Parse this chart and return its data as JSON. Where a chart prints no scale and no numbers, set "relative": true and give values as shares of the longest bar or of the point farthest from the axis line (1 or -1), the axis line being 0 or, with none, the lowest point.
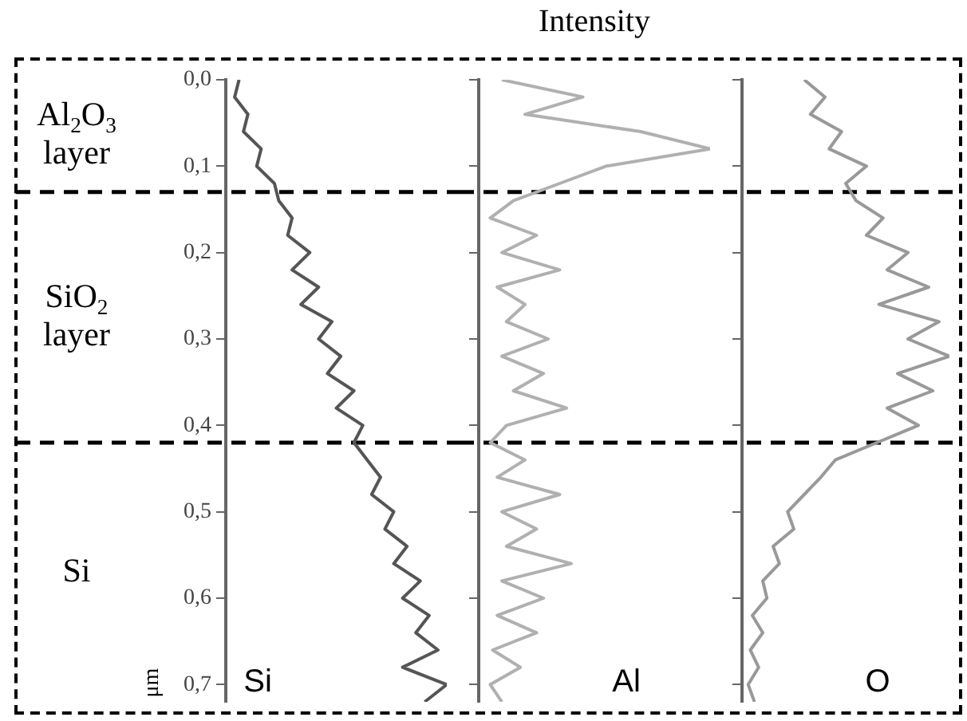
{
  "chart_data": [
    {
      "type": "line",
      "orientation": "horizontal",
      "relative": true,
      "ylabel": "μm",
      "ylim": [
        0.72,
        0
      ],
      "yticks": [
        {
          "value": 0,
          "label": "0,0"
        },
        {
          "value": 0.1,
          "label": "0,1"
        },
        {
          "value": 0.2,
          "label": "0,2"
        },
        {
          "value": 0.3,
          "label": "0,3"
        },
        {
          "value": 0.4,
          "label": "0,4"
        },
        {
          "value": 0.5,
          "label": "0,5"
        },
        {
          "value": 0.6,
          "label": "0,6"
        },
        {
          "value": 0.7,
          "label": "0,7"
        }
      ],
      "legend": false,
      "grid": false,
      "marker": "none",
      "ref_lines": [
        {
          "axis": "y",
          "value": 0.13,
          "line_style": "dashed",
          "color": "#000000"
        },
        {
          "axis": "y",
          "value": 0.42,
          "line_style": "dashed",
          "color": "#000000"
        }
      ],
      "annotations": [
        "Al$_{2}$O$_{3}$ layer",
        "SiO$_{2}$ layer",
        "Si"
      ],
      "series": [
        {
          "name": "Si",
          "color": "#555555",
          "x": [
            0,
            0.02,
            0.04,
            0.06,
            0.08,
            0.1,
            0.12,
            0.14,
            0.16,
            0.18,
            0.2,
            0.22,
            0.24,
            0.26,
            0.28,
            0.3,
            0.32,
            0.34,
            0.36,
            0.38,
            0.4,
            0.42,
            0.44,
            0.46,
            0.48,
            0.5,
            0.52,
            0.54,
            0.56,
            0.58,
            0.6,
            0.62,
            0.64,
            0.66,
            0.68,
            0.7,
            0.72
          ],
          "values": [
            0.06,
            0.04,
            0.1,
            0.08,
            0.16,
            0.14,
            0.22,
            0.24,
            0.3,
            0.28,
            0.38,
            0.3,
            0.42,
            0.34,
            0.48,
            0.42,
            0.52,
            0.46,
            0.58,
            0.5,
            0.62,
            0.58,
            0.64,
            0.7,
            0.66,
            0.76,
            0.72,
            0.82,
            0.76,
            0.88,
            0.8,
            0.92,
            0.86,
            0.96,
            0.8,
            1.0,
            0.9
          ]
        }
      ]
    },
    {
      "type": "line",
      "orientation": "horizontal",
      "relative": true,
      "xlabel": "Intensity",
      "ylim": [
        0.72,
        0
      ],
      "yticks": [
        0,
        0.1,
        0.2,
        0.3,
        0.4,
        0.5,
        0.6,
        0.7
      ],
      "tick_labels": false,
      "legend": false,
      "grid": false,
      "marker": "none",
      "ref_lines": [
        {
          "axis": "y",
          "value": 0.13,
          "line_style": "dashed",
          "color": "#000000"
        },
        {
          "axis": "y",
          "value": 0.42,
          "line_style": "dashed",
          "color": "#000000"
        }
      ],
      "series": [
        {
          "name": "Al",
          "color": "#b0b0b0",
          "x": [
            0,
            0.02,
            0.04,
            0.06,
            0.08,
            0.1,
            0.12,
            0.14,
            0.16,
            0.18,
            0.2,
            0.22,
            0.24,
            0.26,
            0.28,
            0.3,
            0.32,
            0.34,
            0.36,
            0.38,
            0.4,
            0.42,
            0.44,
            0.46,
            0.48,
            0.5,
            0.52,
            0.54,
            0.56,
            0.58,
            0.6,
            0.62,
            0.64,
            0.66,
            0.68,
            0.7,
            0.72
          ],
          "values": [
            0.1,
            0.45,
            0.2,
            0.7,
            1.0,
            0.55,
            0.35,
            0.15,
            0.05,
            0.25,
            0.1,
            0.35,
            0.08,
            0.2,
            0.12,
            0.3,
            0.1,
            0.28,
            0.15,
            0.38,
            0.12,
            0.05,
            0.2,
            0.08,
            0.35,
            0.1,
            0.25,
            0.12,
            0.4,
            0.1,
            0.28,
            0.08,
            0.25,
            0.06,
            0.18,
            0.05,
            0.1
          ]
        }
      ]
    },
    {
      "type": "line",
      "orientation": "horizontal",
      "relative": true,
      "ylim": [
        0.72,
        0
      ],
      "yticks": [
        0,
        0.1,
        0.2,
        0.3,
        0.4,
        0.5,
        0.6,
        0.7
      ],
      "tick_labels": false,
      "legend": false,
      "grid": false,
      "marker": "none",
      "ref_lines": [
        {
          "axis": "y",
          "value": 0.13,
          "line_style": "dashed",
          "color": "#000000"
        },
        {
          "axis": "y",
          "value": 0.42,
          "line_style": "dashed",
          "color": "#000000"
        }
      ],
      "series": [
        {
          "name": "O",
          "color": "#999999",
          "x": [
            0,
            0.02,
            0.04,
            0.06,
            0.08,
            0.1,
            0.12,
            0.14,
            0.16,
            0.18,
            0.2,
            0.22,
            0.24,
            0.26,
            0.28,
            0.3,
            0.32,
            0.34,
            0.36,
            0.38,
            0.4,
            0.42,
            0.44,
            0.46,
            0.48,
            0.5,
            0.52,
            0.54,
            0.56,
            0.58,
            0.6,
            0.62,
            0.64,
            0.66,
            0.68,
            0.7,
            0.72
          ],
          "values": [
            0.3,
            0.4,
            0.33,
            0.48,
            0.42,
            0.6,
            0.5,
            0.55,
            0.68,
            0.6,
            0.8,
            0.7,
            0.9,
            0.66,
            0.95,
            0.8,
            1.0,
            0.75,
            0.92,
            0.7,
            0.85,
            0.65,
            0.45,
            0.38,
            0.3,
            0.22,
            0.25,
            0.15,
            0.18,
            0.1,
            0.12,
            0.05,
            0.1,
            0.04,
            0.08,
            0.03,
            0.06
          ]
        }
      ]
    }
  ]
}
